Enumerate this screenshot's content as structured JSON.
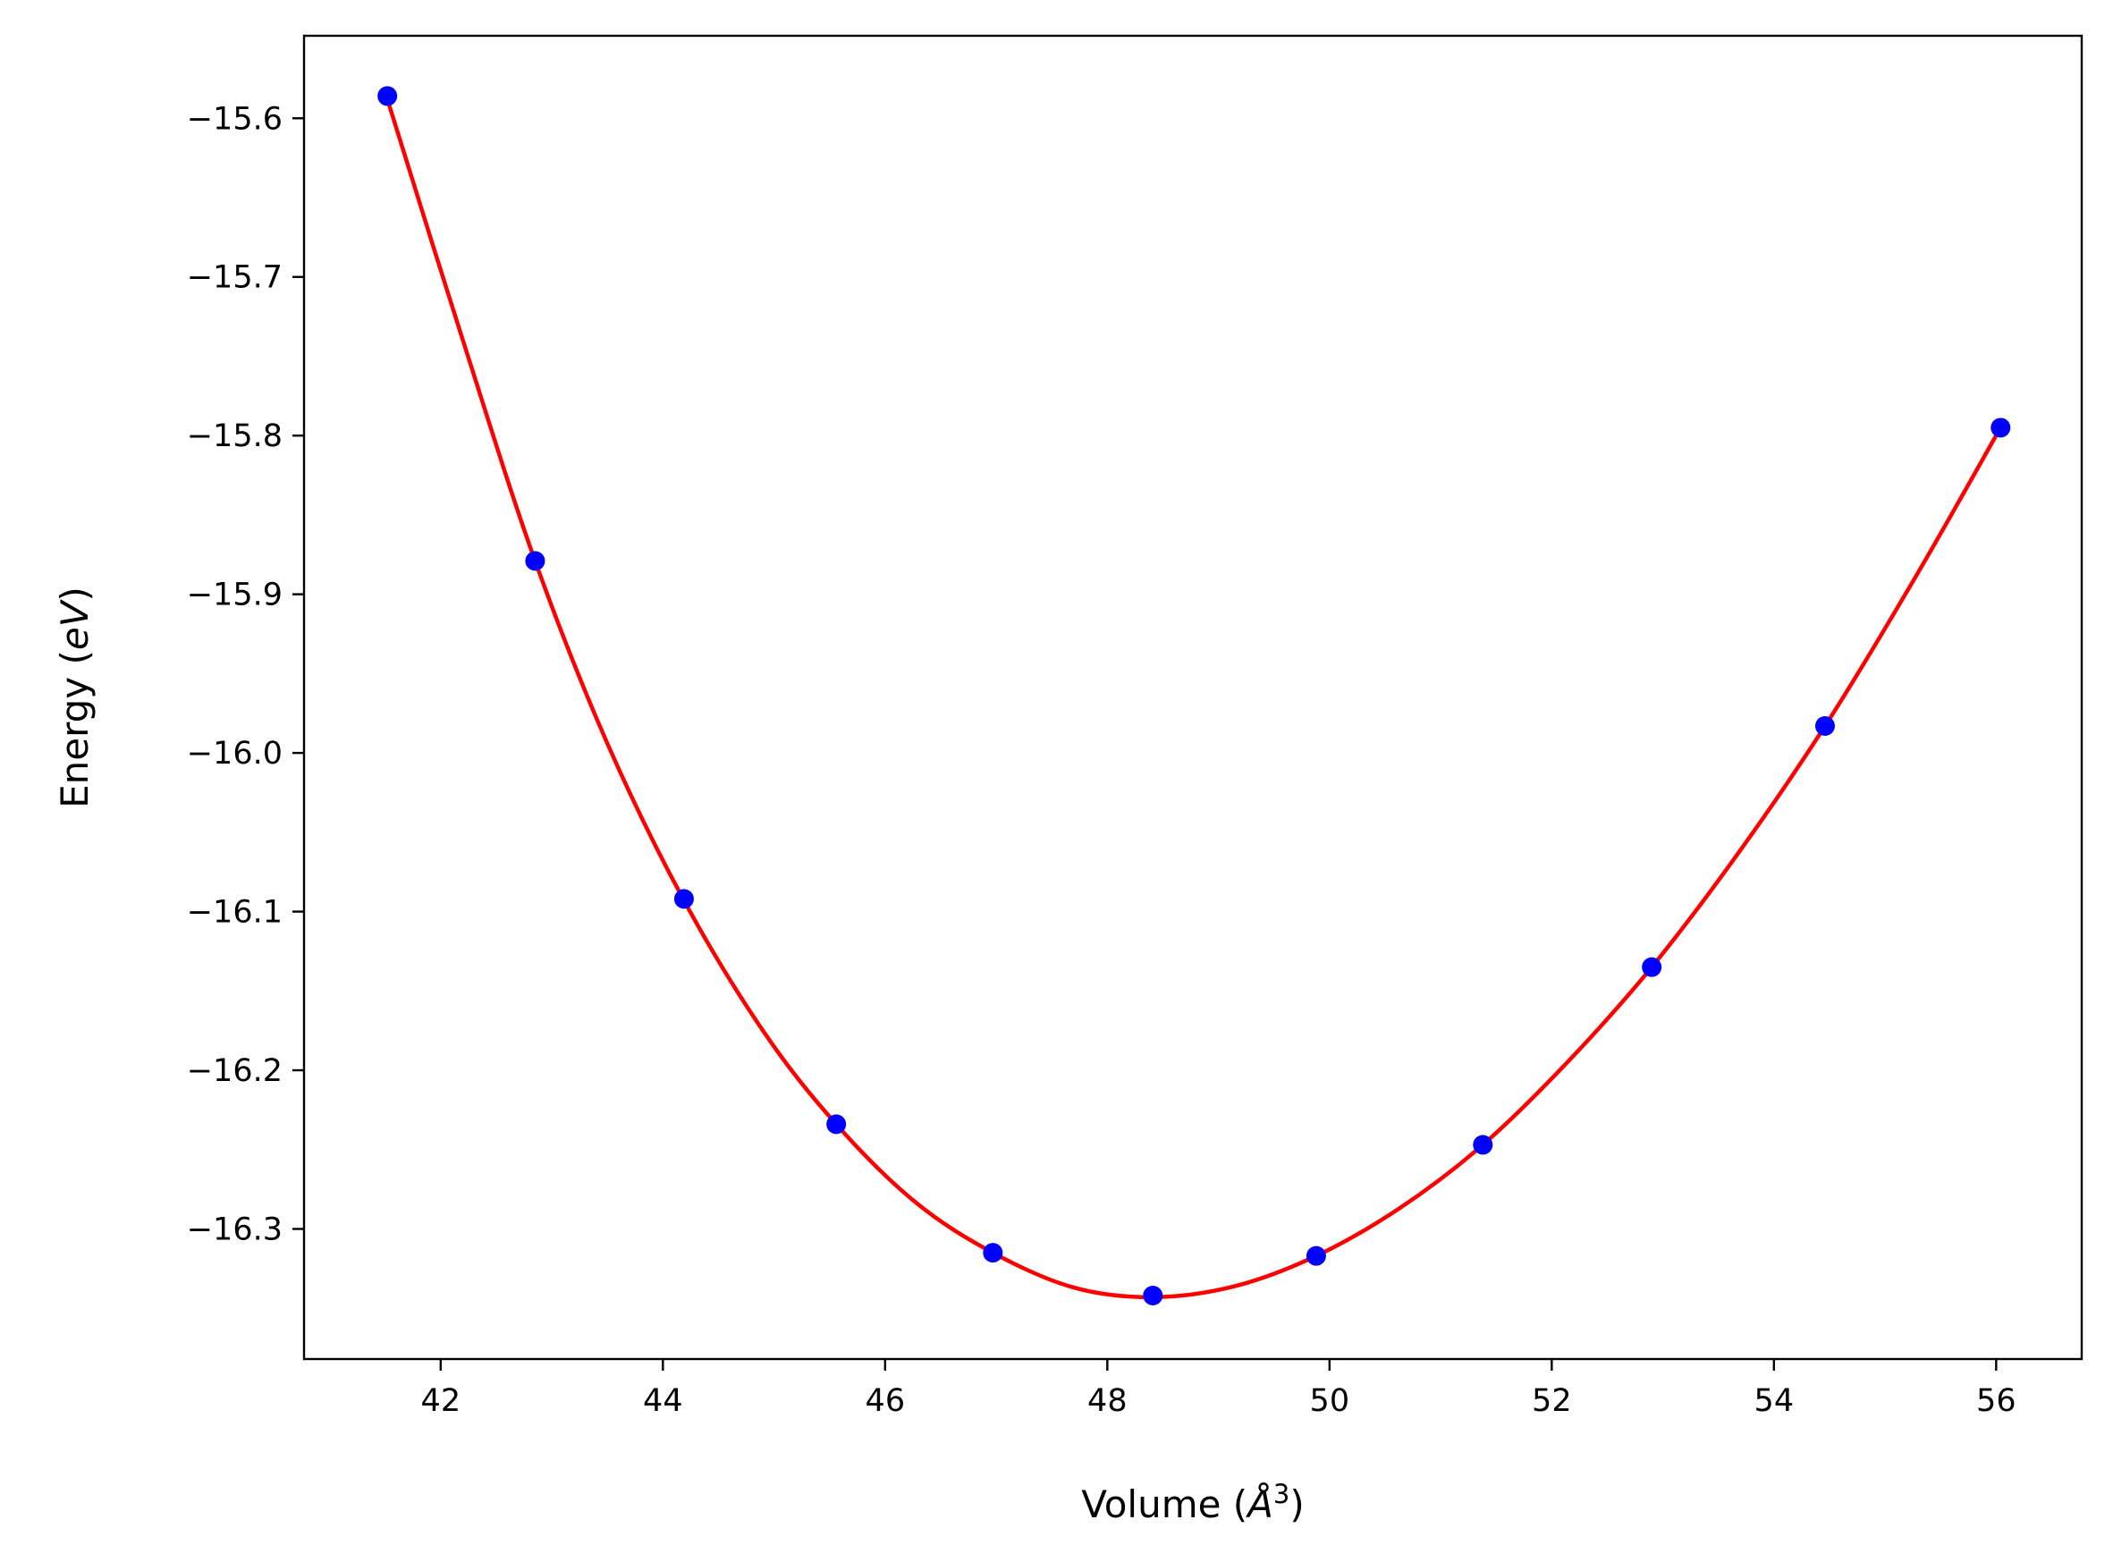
{
  "chart_data": {
    "type": "line",
    "title": "",
    "xlabel_main": "Volume (",
    "xlabel_unit": "Å",
    "xlabel_sup": "3",
    "xlabel_close": ")",
    "ylabel_main": "Energy (",
    "ylabel_unit": "eV",
    "ylabel_close": ")",
    "xlim": [
      40.77,
      56.77
    ],
    "ylim": [
      -16.382,
      -15.548
    ],
    "xticks": [
      42,
      44,
      46,
      48,
      50,
      52,
      54,
      56
    ],
    "xtick_labels": [
      "42",
      "44",
      "46",
      "48",
      "50",
      "52",
      "54",
      "56"
    ],
    "yticks": [
      -16.3,
      -16.2,
      -16.1,
      -16.0,
      -15.9,
      -15.8,
      -15.7,
      -15.6
    ],
    "ytick_labels": [
      "−16.3",
      "−16.2",
      "−16.1",
      "−16.0",
      "−15.9",
      "−15.8",
      "−15.7",
      "−15.6"
    ],
    "grid": false,
    "series": [
      {
        "kind": "points",
        "color": "#0000ff",
        "x": [
          41.52,
          42.85,
          44.19,
          45.56,
          46.97,
          48.41,
          49.88,
          51.38,
          52.9,
          54.46,
          56.04
        ],
        "y": [
          -15.586,
          -15.879,
          -16.092,
          -16.234,
          -16.315,
          -16.342,
          -16.317,
          -16.247,
          -16.135,
          -15.983,
          -15.795
        ]
      },
      {
        "kind": "fit-curve",
        "color": "#ff0000",
        "x": [
          41.52,
          42.2,
          42.85,
          43.5,
          44.19,
          44.9,
          45.56,
          46.27,
          46.97,
          47.7,
          48.41,
          49.15,
          49.88,
          50.63,
          51.38,
          52.14,
          52.9,
          53.68,
          54.46,
          55.25,
          56.04
        ],
        "y": [
          -15.588,
          -15.74,
          -15.879,
          -15.994,
          -16.093,
          -16.175,
          -16.234,
          -16.283,
          -16.315,
          -16.337,
          -16.343,
          -16.336,
          -16.317,
          -16.287,
          -16.247,
          -16.195,
          -16.135,
          -16.063,
          -15.983,
          -15.892,
          -15.795
        ]
      }
    ]
  }
}
